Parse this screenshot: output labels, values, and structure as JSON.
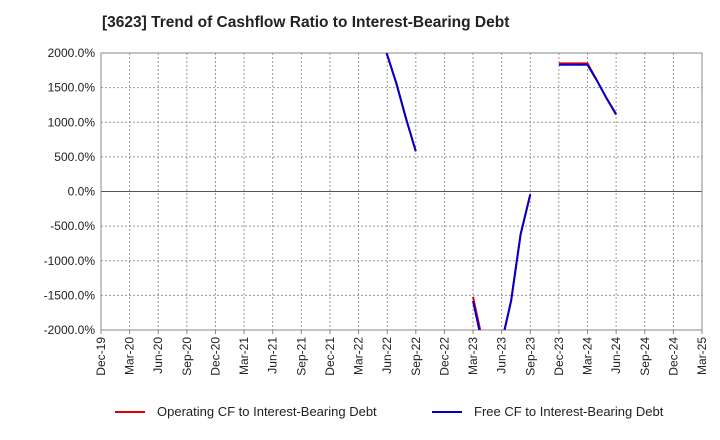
{
  "chart_data": {
    "type": "line",
    "title": "[3623]  Trend of Cashflow Ratio to Interest-Bearing Debt",
    "xlabel": "",
    "ylabel": "",
    "ylim": [
      -2000,
      2000
    ],
    "y_ticks": [
      "2000.0%",
      "1500.0%",
      "1000.0%",
      "500.0%",
      "0.0%",
      "-500.0%",
      "-1000.0%",
      "-1500.0%",
      "-2000.0%"
    ],
    "y_tick_values": [
      2000,
      1500,
      1000,
      500,
      0,
      -500,
      -1000,
      -1500,
      -2000
    ],
    "categories": [
      "Dec-19",
      "Mar-20",
      "Jun-20",
      "Sep-20",
      "Dec-20",
      "Mar-21",
      "Jun-21",
      "Sep-21",
      "Dec-21",
      "Mar-22",
      "Jun-22",
      "Sep-22",
      "Dec-22",
      "Mar-23",
      "Jun-23",
      "Sep-23",
      "Dec-23",
      "Mar-24",
      "Jun-24",
      "Sep-24",
      "Dec-24",
      "Mar-25"
    ],
    "series": [
      {
        "name": "Operating CF to Interest-Bearing Debt",
        "color": "#e00000",
        "points": [
          {
            "x": 9.98,
            "y": 2000
          },
          {
            "x": 10.33,
            "y": 1550
          },
          {
            "x": 10.66,
            "y": 1050
          },
          {
            "x": 11.0,
            "y": 580
          },
          null,
          {
            "x": 13.0,
            "y": -1520
          },
          {
            "x": 13.25,
            "y": -2000
          },
          null,
          {
            "x": 14.1,
            "y": -2000
          },
          {
            "x": 14.33,
            "y": -1580
          },
          {
            "x": 14.66,
            "y": -620
          },
          {
            "x": 15.0,
            "y": -40
          },
          null,
          {
            "x": 16.0,
            "y": 1850
          },
          {
            "x": 16.33,
            "y": 1850
          },
          {
            "x": 16.66,
            "y": 1850
          },
          {
            "x": 17.0,
            "y": 1850
          },
          {
            "x": 17.33,
            "y": 1600
          },
          {
            "x": 17.66,
            "y": 1350
          },
          {
            "x": 18.0,
            "y": 1120
          }
        ]
      },
      {
        "name": "Free CF to Interest-Bearing Debt",
        "color": "#0000cc",
        "points": [
          {
            "x": 9.98,
            "y": 2000
          },
          {
            "x": 10.33,
            "y": 1550
          },
          {
            "x": 10.66,
            "y": 1050
          },
          {
            "x": 11.0,
            "y": 580
          },
          null,
          {
            "x": 13.0,
            "y": -1580
          },
          {
            "x": 13.22,
            "y": -2000
          },
          null,
          {
            "x": 14.1,
            "y": -2000
          },
          {
            "x": 14.33,
            "y": -1580
          },
          {
            "x": 14.66,
            "y": -620
          },
          {
            "x": 15.0,
            "y": -40
          },
          null,
          {
            "x": 16.0,
            "y": 1830
          },
          {
            "x": 16.33,
            "y": 1830
          },
          {
            "x": 16.66,
            "y": 1830
          },
          {
            "x": 17.0,
            "y": 1830
          },
          {
            "x": 17.33,
            "y": 1600
          },
          {
            "x": 17.66,
            "y": 1350
          },
          {
            "x": 18.0,
            "y": 1110
          }
        ]
      }
    ],
    "legend": [
      "Operating CF to Interest-Bearing Debt",
      "Free CF to Interest-Bearing Debt"
    ],
    "grid": true
  }
}
